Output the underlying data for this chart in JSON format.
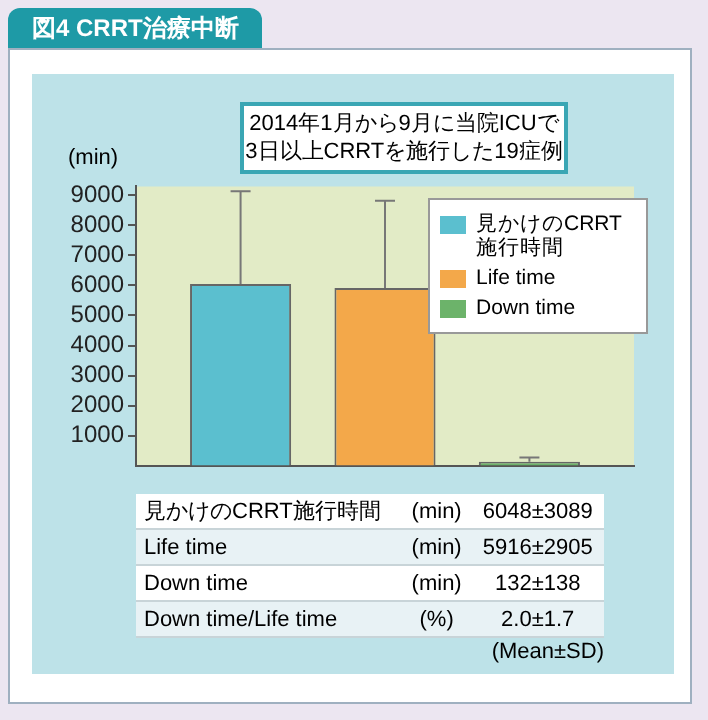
{
  "chart_data": {
    "type": "bar",
    "title": "図4 CRRT治療中断",
    "subtitle": "2014年1月から9月に当院ICUで\n3日以上CRRTを施行した19症例",
    "ylabel": "(min)",
    "categories": [
      null
    ],
    "series": [
      {
        "name": "見かけのCRRT施行時間",
        "color": "#5bbfcf",
        "values": [
          6048
        ],
        "errors": [
          [
            6048,
            9137
          ]
        ]
      },
      {
        "name": "Life time",
        "color": "#f3a84a",
        "values": [
          5916
        ],
        "errors": [
          [
            5916,
            8821
          ]
        ]
      },
      {
        "name": "Down time",
        "color": "#6cb36a",
        "values": [
          132
        ],
        "errors": [
          [
            132,
            270
          ]
        ]
      }
    ],
    "ylim": [
      0,
      9300
    ],
    "yticks": [
      1000,
      2000,
      3000,
      4000,
      5000,
      6000,
      7000,
      8000,
      9000
    ],
    "grid": false,
    "legend": "top right",
    "annotations": [
      "見かけのCRRT施行時間",
      "(min)",
      "6048±3089",
      "Life time",
      "(min)",
      "5916±2905",
      "Down time",
      "(min)",
      "132±138",
      "Down time/Life time",
      "(%)",
      "2.0±1.7",
      "(Mean±SD)"
    ]
  }
}
